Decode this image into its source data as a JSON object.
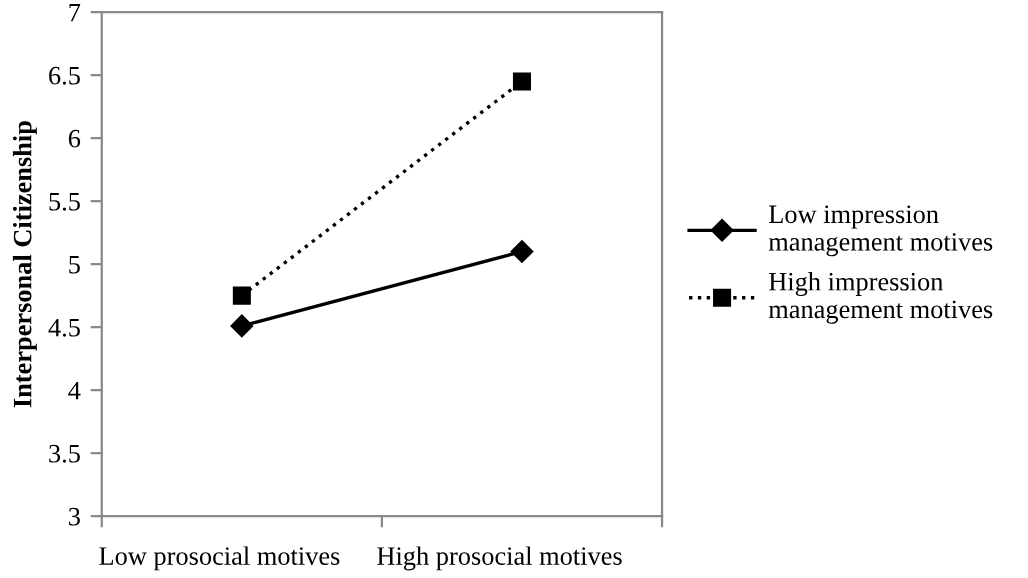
{
  "chart_data": {
    "type": "line",
    "ylabel": "Interpersonal Citizenship",
    "categories": [
      "Low prosocial motives",
      "High prosocial motives"
    ],
    "series": [
      {
        "name": "Low impression management motives",
        "color": "#000000",
        "values": [
          4.51,
          5.1
        ],
        "marker": "diamond",
        "line_style": "solid"
      },
      {
        "name": "High impression management motives",
        "color": "#000000",
        "values": [
          4.75,
          6.45
        ],
        "marker": "square",
        "line_style": "dotted"
      }
    ],
    "ylim": [
      3,
      7
    ],
    "yticks": [
      3,
      3.5,
      4,
      4.5,
      5,
      5.5,
      6,
      6.5,
      7
    ],
    "grid": false,
    "legend": "right"
  }
}
